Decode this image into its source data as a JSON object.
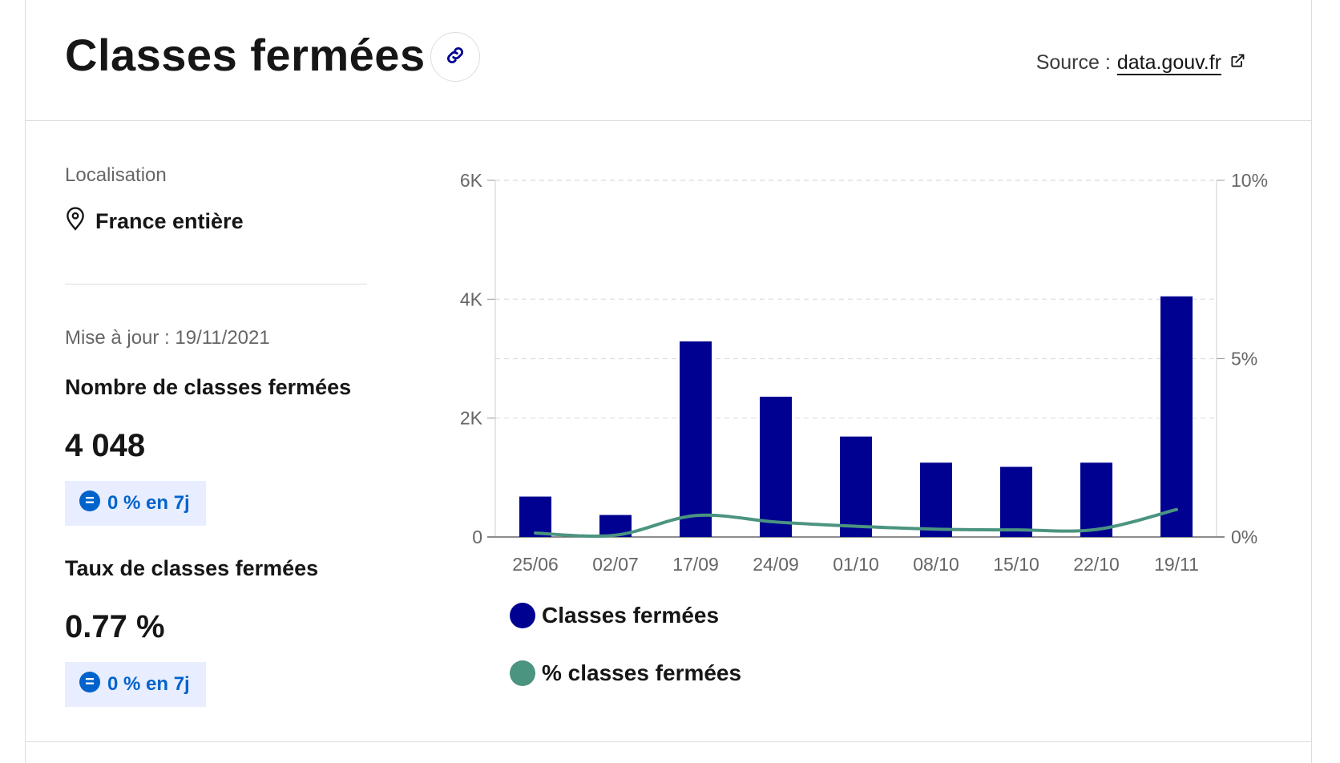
{
  "header": {
    "title": "Classes fermées",
    "source_label": "Source :",
    "source_link": "data.gouv.fr"
  },
  "sidebar": {
    "location_label": "Localisation",
    "location_value": "France entière",
    "update_text": "Mise à jour : 19/11/2021",
    "metrics": [
      {
        "title": "Nombre de classes fermées",
        "value": "4 048",
        "badge": "0 % en 7j"
      },
      {
        "title": "Taux de classes fermées",
        "value": "0.77 %",
        "badge": "0 % en 7j"
      }
    ]
  },
  "colors": {
    "bar": "#000091",
    "line": "#4b9480",
    "badge_text": "#0063cb",
    "badge_bg": "#e8edff"
  },
  "chart_data": {
    "type": "bar",
    "categories": [
      "25/06",
      "02/07",
      "17/09",
      "24/09",
      "01/10",
      "08/10",
      "15/10",
      "22/10",
      "19/11"
    ],
    "series": [
      {
        "name": "Classes fermées",
        "type": "bar",
        "axis": "left",
        "color": "#000091",
        "values": [
          680,
          370,
          3290,
          2360,
          1690,
          1250,
          1180,
          1250,
          4048
        ]
      },
      {
        "name": "% classes fermées",
        "type": "line",
        "axis": "right",
        "color": "#4b9480",
        "values": [
          0.11,
          0.05,
          0.6,
          0.42,
          0.3,
          0.22,
          0.2,
          0.21,
          0.77
        ]
      }
    ],
    "y_left": {
      "min": 0,
      "max": 6000,
      "ticks": [
        0,
        2000,
        4000,
        6000
      ],
      "tick_labels": [
        "0",
        "2K",
        "4K",
        "6K"
      ]
    },
    "y_right": {
      "min": 0,
      "max": 10,
      "ticks": [
        0,
        5,
        10
      ],
      "tick_labels": [
        "0%",
        "5%",
        "10%"
      ]
    },
    "grid": true,
    "legend": "bottom-left"
  }
}
